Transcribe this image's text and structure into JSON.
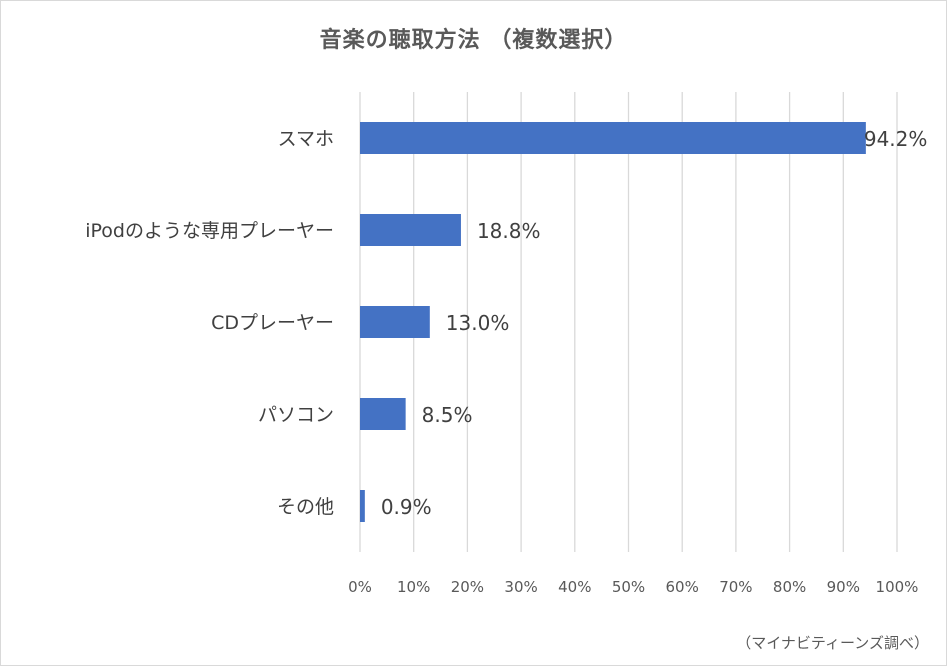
{
  "chart_data": {
    "type": "bar",
    "orientation": "horizontal",
    "title": "音楽の聴取方法 （複数選択）",
    "categories": [
      "スマホ",
      "iPodのような専用プレーヤー",
      "CDプレーヤー",
      "パソコン",
      "その他"
    ],
    "values": [
      94.2,
      18.8,
      13.0,
      8.5,
      0.9
    ],
    "data_labels": [
      "94.2%",
      "18.8%",
      "13.0%",
      "8.5%",
      "0.9%"
    ],
    "xlim": [
      0,
      100
    ],
    "xticks": [
      0,
      10,
      20,
      30,
      40,
      50,
      60,
      70,
      80,
      90,
      100
    ],
    "xtick_labels": [
      "0%",
      "10%",
      "20%",
      "30%",
      "40%",
      "50%",
      "60%",
      "70%",
      "80%",
      "90%",
      "100%"
    ],
    "grid": "vertical",
    "bar_color": "#4472c4",
    "grid_color": "#d9d9d9",
    "legend": "none"
  },
  "source_note": "（マイナビティーンズ調べ）"
}
